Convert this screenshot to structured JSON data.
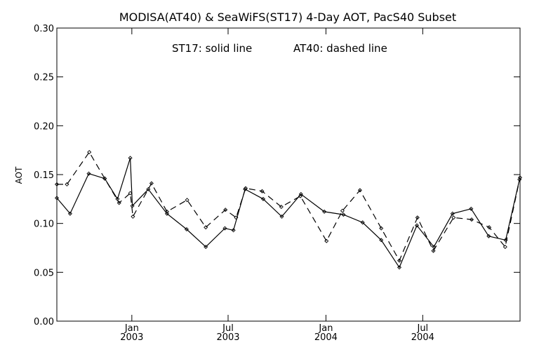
{
  "chart_data": {
    "type": "line",
    "title": "MODISA(AT40) & SeaWiFS(ST17) 4-Day AOT, PacS40 Subset",
    "annotation_st17": "ST17: solid line",
    "annotation_at40": "AT40: dashed line",
    "ylabel": "AOT",
    "xlabel": "",
    "ylim": [
      0.0,
      0.3
    ],
    "yticks": [
      "0.00",
      "0.05",
      "0.10",
      "0.15",
      "0.20",
      "0.25",
      "0.30"
    ],
    "xlim": [
      "2002-08-13",
      "2004-12-31"
    ],
    "xticks": [
      {
        "date": "2003-01-01",
        "month": "Jan",
        "year": "2003"
      },
      {
        "date": "2003-07-01",
        "month": "Jul",
        "year": "2003"
      },
      {
        "date": "2004-01-01",
        "month": "Jan",
        "year": "2004"
      },
      {
        "date": "2004-07-01",
        "month": "Jul",
        "year": "2004"
      }
    ],
    "grid": false,
    "series": [
      {
        "name": "ST17",
        "style": "solid",
        "points": [
          [
            "2002-08-13",
            0.126
          ],
          [
            "2002-09-07",
            0.11
          ],
          [
            "2002-10-12",
            0.151
          ],
          [
            "2002-11-11",
            0.146
          ],
          [
            "2002-12-05",
            0.125
          ],
          [
            "2002-12-29",
            0.167
          ],
          [
            "2003-01-02",
            0.118
          ],
          [
            "2003-02-01",
            0.135
          ],
          [
            "2003-03-08",
            0.11
          ],
          [
            "2003-04-14",
            0.094
          ],
          [
            "2003-05-20",
            0.076
          ],
          [
            "2003-06-25",
            0.095
          ],
          [
            "2003-07-11",
            0.093
          ],
          [
            "2003-08-02",
            0.135
          ],
          [
            "2003-09-05",
            0.125
          ],
          [
            "2003-10-10",
            0.107
          ],
          [
            "2003-11-15",
            0.13
          ],
          [
            "2003-12-29",
            0.112
          ],
          [
            "2004-02-03",
            0.109
          ],
          [
            "2004-03-10",
            0.101
          ],
          [
            "2004-04-14",
            0.083
          ],
          [
            "2004-05-18",
            0.055
          ],
          [
            "2004-06-20",
            0.098
          ],
          [
            "2004-07-22",
            0.076
          ],
          [
            "2004-08-26",
            0.11
          ],
          [
            "2004-09-30",
            0.115
          ],
          [
            "2004-11-02",
            0.087
          ],
          [
            "2004-12-04",
            0.083
          ],
          [
            "2004-12-30",
            0.145
          ]
        ]
      },
      {
        "name": "AT40",
        "style": "dashed",
        "points": [
          [
            "2002-08-13",
            0.14
          ],
          [
            "2002-09-01",
            0.14
          ],
          [
            "2002-10-13",
            0.173
          ],
          [
            "2002-11-11",
            0.146
          ],
          [
            "2002-12-08",
            0.121
          ],
          [
            "2002-12-29",
            0.131
          ],
          [
            "2003-01-03",
            0.107
          ],
          [
            "2003-02-07",
            0.141
          ],
          [
            "2003-03-08",
            0.112
          ],
          [
            "2003-04-15",
            0.124
          ],
          [
            "2003-05-20",
            0.096
          ],
          [
            "2003-06-26",
            0.114
          ],
          [
            "2003-07-16",
            0.106
          ],
          [
            "2003-08-03",
            0.136
          ],
          [
            "2003-09-03",
            0.133
          ],
          [
            "2003-10-09",
            0.117
          ],
          [
            "2003-11-14",
            0.128
          ],
          [
            "2004-01-02",
            0.082
          ],
          [
            "2004-02-01",
            0.113
          ],
          [
            "2004-03-05",
            0.134
          ],
          [
            "2004-04-14",
            0.095
          ],
          [
            "2004-05-18",
            0.062
          ],
          [
            "2004-06-21",
            0.106
          ],
          [
            "2004-07-21",
            0.072
          ],
          [
            "2004-08-28",
            0.106
          ],
          [
            "2004-10-01",
            0.104
          ],
          [
            "2004-11-03",
            0.096
          ],
          [
            "2004-12-03",
            0.076
          ],
          [
            "2004-12-31",
            0.147
          ]
        ]
      }
    ]
  }
}
